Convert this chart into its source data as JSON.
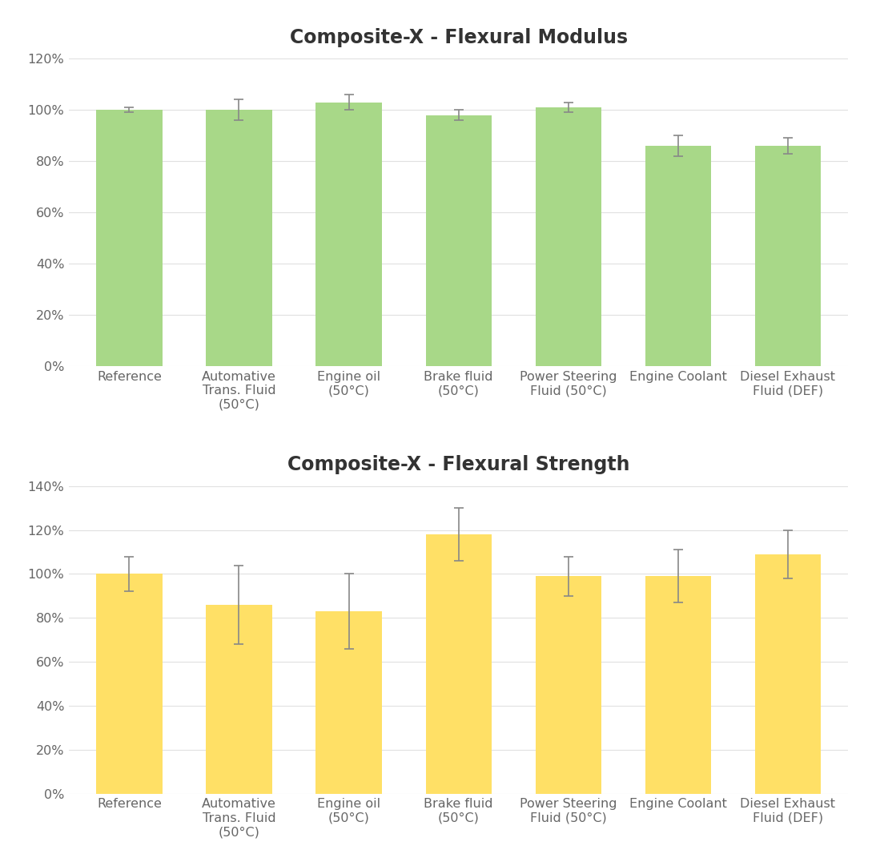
{
  "top_chart": {
    "title": "Composite-X - Flexural Modulus",
    "categories": [
      "Reference",
      "Automative\nTrans. Fluid\n(50°C)",
      "Engine oil\n(50°C)",
      "Brake fluid\n(50°C)",
      "Power Steering\nFluid (50°C)",
      "Engine Coolant",
      "Diesel Exhaust\nFluid (DEF)"
    ],
    "values": [
      100,
      100,
      103,
      98,
      101,
      86,
      86
    ],
    "errors": [
      1,
      4,
      3,
      2,
      2,
      4,
      3
    ],
    "bar_color": "#a8d888",
    "ylim": [
      0,
      120
    ],
    "yticks": [
      0,
      20,
      40,
      60,
      80,
      100,
      120
    ]
  },
  "bottom_chart": {
    "title": "Composite-X - Flexural Strength",
    "categories": [
      "Reference",
      "Automative\nTrans. Fluid\n(50°C)",
      "Engine oil\n(50°C)",
      "Brake fluid\n(50°C)",
      "Power Steering\nFluid (50°C)",
      "Engine Coolant",
      "Diesel Exhaust\nFluid (DEF)"
    ],
    "values": [
      100,
      86,
      83,
      118,
      99,
      99,
      109
    ],
    "errors": [
      8,
      18,
      17,
      12,
      9,
      12,
      11
    ],
    "bar_color": "#FFE066",
    "ylim": [
      0,
      140
    ],
    "yticks": [
      0,
      20,
      40,
      60,
      80,
      100,
      120,
      140
    ]
  },
  "background_color": "#ffffff",
  "grid_color": "#e0e0e0",
  "title_fontsize": 17,
  "tick_fontsize": 11.5,
  "bar_width": 0.6,
  "error_color": "#888888",
  "error_capsize": 4,
  "error_linewidth": 1.2
}
